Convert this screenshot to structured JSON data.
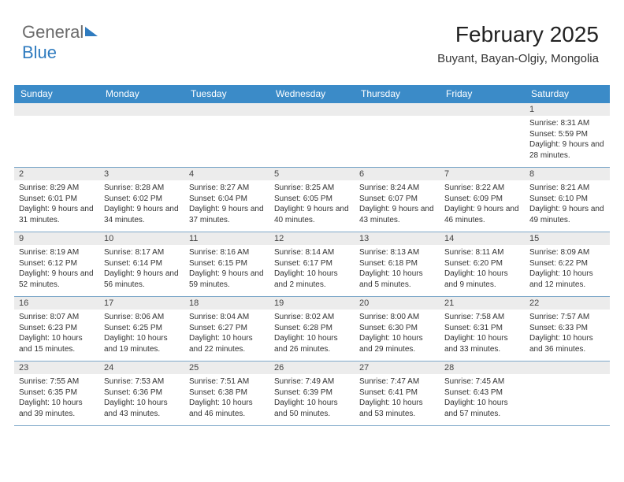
{
  "brand": {
    "word1": "General",
    "word2": "Blue"
  },
  "header": {
    "month_year": "February 2025",
    "location": "Buyant, Bayan-Olgiy, Mongolia"
  },
  "colors": {
    "header_bar": "#3b8bc8",
    "daynum_bg": "#ececec",
    "cell_border": "#7ea8c9",
    "logo_gray": "#6b6b6b",
    "logo_blue": "#2f7bbf"
  },
  "day_labels": [
    "Sunday",
    "Monday",
    "Tuesday",
    "Wednesday",
    "Thursday",
    "Friday",
    "Saturday"
  ],
  "weeks": [
    [
      null,
      null,
      null,
      null,
      null,
      null,
      {
        "n": "1",
        "sr": "8:31 AM",
        "ss": "5:59 PM",
        "dl": "9 hours and 28 minutes."
      }
    ],
    [
      {
        "n": "2",
        "sr": "8:29 AM",
        "ss": "6:01 PM",
        "dl": "9 hours and 31 minutes."
      },
      {
        "n": "3",
        "sr": "8:28 AM",
        "ss": "6:02 PM",
        "dl": "9 hours and 34 minutes."
      },
      {
        "n": "4",
        "sr": "8:27 AM",
        "ss": "6:04 PM",
        "dl": "9 hours and 37 minutes."
      },
      {
        "n": "5",
        "sr": "8:25 AM",
        "ss": "6:05 PM",
        "dl": "9 hours and 40 minutes."
      },
      {
        "n": "6",
        "sr": "8:24 AM",
        "ss": "6:07 PM",
        "dl": "9 hours and 43 minutes."
      },
      {
        "n": "7",
        "sr": "8:22 AM",
        "ss": "6:09 PM",
        "dl": "9 hours and 46 minutes."
      },
      {
        "n": "8",
        "sr": "8:21 AM",
        "ss": "6:10 PM",
        "dl": "9 hours and 49 minutes."
      }
    ],
    [
      {
        "n": "9",
        "sr": "8:19 AM",
        "ss": "6:12 PM",
        "dl": "9 hours and 52 minutes."
      },
      {
        "n": "10",
        "sr": "8:17 AM",
        "ss": "6:14 PM",
        "dl": "9 hours and 56 minutes."
      },
      {
        "n": "11",
        "sr": "8:16 AM",
        "ss": "6:15 PM",
        "dl": "9 hours and 59 minutes."
      },
      {
        "n": "12",
        "sr": "8:14 AM",
        "ss": "6:17 PM",
        "dl": "10 hours and 2 minutes."
      },
      {
        "n": "13",
        "sr": "8:13 AM",
        "ss": "6:18 PM",
        "dl": "10 hours and 5 minutes."
      },
      {
        "n": "14",
        "sr": "8:11 AM",
        "ss": "6:20 PM",
        "dl": "10 hours and 9 minutes."
      },
      {
        "n": "15",
        "sr": "8:09 AM",
        "ss": "6:22 PM",
        "dl": "10 hours and 12 minutes."
      }
    ],
    [
      {
        "n": "16",
        "sr": "8:07 AM",
        "ss": "6:23 PM",
        "dl": "10 hours and 15 minutes."
      },
      {
        "n": "17",
        "sr": "8:06 AM",
        "ss": "6:25 PM",
        "dl": "10 hours and 19 minutes."
      },
      {
        "n": "18",
        "sr": "8:04 AM",
        "ss": "6:27 PM",
        "dl": "10 hours and 22 minutes."
      },
      {
        "n": "19",
        "sr": "8:02 AM",
        "ss": "6:28 PM",
        "dl": "10 hours and 26 minutes."
      },
      {
        "n": "20",
        "sr": "8:00 AM",
        "ss": "6:30 PM",
        "dl": "10 hours and 29 minutes."
      },
      {
        "n": "21",
        "sr": "7:58 AM",
        "ss": "6:31 PM",
        "dl": "10 hours and 33 minutes."
      },
      {
        "n": "22",
        "sr": "7:57 AM",
        "ss": "6:33 PM",
        "dl": "10 hours and 36 minutes."
      }
    ],
    [
      {
        "n": "23",
        "sr": "7:55 AM",
        "ss": "6:35 PM",
        "dl": "10 hours and 39 minutes."
      },
      {
        "n": "24",
        "sr": "7:53 AM",
        "ss": "6:36 PM",
        "dl": "10 hours and 43 minutes."
      },
      {
        "n": "25",
        "sr": "7:51 AM",
        "ss": "6:38 PM",
        "dl": "10 hours and 46 minutes."
      },
      {
        "n": "26",
        "sr": "7:49 AM",
        "ss": "6:39 PM",
        "dl": "10 hours and 50 minutes."
      },
      {
        "n": "27",
        "sr": "7:47 AM",
        "ss": "6:41 PM",
        "dl": "10 hours and 53 minutes."
      },
      {
        "n": "28",
        "sr": "7:45 AM",
        "ss": "6:43 PM",
        "dl": "10 hours and 57 minutes."
      },
      null
    ]
  ],
  "labels": {
    "sunrise": "Sunrise:",
    "sunset": "Sunset:",
    "daylight": "Daylight:"
  }
}
